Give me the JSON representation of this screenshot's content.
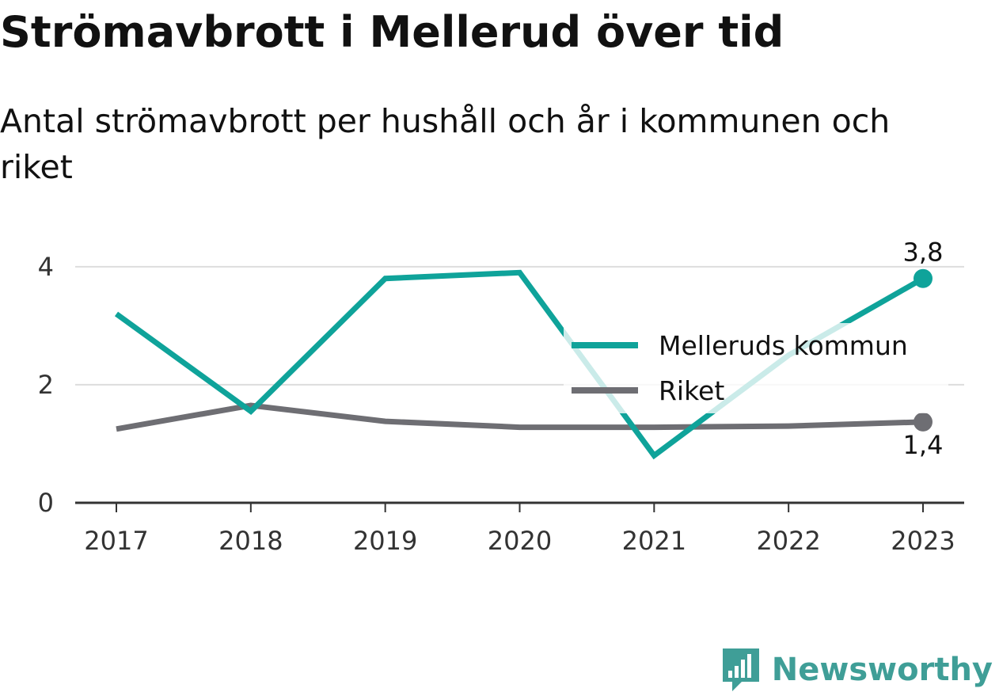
{
  "title": "Strömavbrott i Mellerud över tid",
  "subtitle": "Antal strömavbrott per hushåll och år i kommunen och riket",
  "brand": {
    "name": "Newsworthy",
    "icon": "newsworthy-logo-icon",
    "color": "#3f9e97"
  },
  "chart_data": {
    "type": "line",
    "x": [
      "2017",
      "2018",
      "2019",
      "2020",
      "2021",
      "2022",
      "2023"
    ],
    "ylim": [
      0,
      4.4
    ],
    "yticks": [
      "0",
      "2",
      "4"
    ],
    "grid": true,
    "legend_position": "right",
    "series": [
      {
        "name": "Melleruds kommun",
        "color": "#0fa39a",
        "values": [
          3.2,
          1.55,
          3.8,
          3.9,
          0.8,
          2.5,
          3.8
        ],
        "end_label": "3,8"
      },
      {
        "name": "Riket",
        "color": "#6e6e73",
        "values": [
          1.25,
          1.65,
          1.38,
          1.28,
          1.28,
          1.3,
          1.37
        ],
        "end_label": "1,4"
      }
    ]
  }
}
